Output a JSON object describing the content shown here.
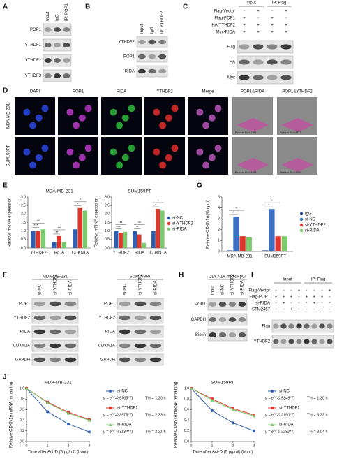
{
  "panels": {
    "A": {
      "label": "A",
      "lanes": [
        "Input",
        "IgG",
        "IP: POP1"
      ],
      "rows": [
        "POP1",
        "YTHDF1",
        "YTHDF2",
        "YTHDF3"
      ]
    },
    "B": {
      "label": "B",
      "lanes": [
        "Input",
        "IgG",
        "IP: YTHDF2"
      ],
      "rows": [
        "YTHDF2",
        "POP1",
        "RIDA"
      ]
    },
    "C": {
      "label": "C",
      "groups": [
        "Input",
        "IP: Flag"
      ],
      "conditions": [
        {
          "name": "Flag-Vector",
          "signs": [
            "-",
            "+",
            "-",
            "+"
          ]
        },
        {
          "name": "Flag-POP1",
          "signs": [
            "+",
            "-",
            "+",
            "-"
          ]
        },
        {
          "name": "HA-YTHDF2",
          "signs": [
            "+",
            "+",
            "+",
            "+"
          ]
        },
        {
          "name": "Myc-RIDA",
          "signs": [
            "+",
            "+",
            "+",
            "+"
          ]
        }
      ],
      "rows": [
        "Flag",
        "HA",
        "Myc"
      ]
    },
    "D": {
      "label": "D",
      "channels": [
        "DAPI",
        "POP1",
        "RIDA",
        "YTHDF2",
        "Merge",
        "POP1&RIDA",
        "POP1&YTHDF2"
      ],
      "channel_colors": [
        "#2a5bd7",
        "#b43cc0",
        "#2e9e3a",
        "#d42a2a",
        "#111111",
        "#111111",
        "#111111"
      ],
      "lines": [
        "MDA-MB-231",
        "SUM159PT"
      ],
      "pearson": [
        [
          "Pearson R²=0.7666",
          "Pearson R²=0.8573"
        ],
        [
          "Pearson R²=0.6683",
          "Pearson R²=0.5035"
        ]
      ]
    },
    "E": {
      "label": "E"
    },
    "F": {
      "label": "F",
      "blots": [
        {
          "title": "MDA-MB-231",
          "lanes": [
            "si-NC",
            "si-YTHDF2",
            "si-RIDA"
          ],
          "rows": [
            "POP1",
            "YTHDF2",
            "RIDA",
            "CDKN1A",
            "GAPDH"
          ]
        },
        {
          "title": "SUM159PT",
          "lanes": [
            "si-NC",
            "si-YTHDF2",
            "si-RIDA"
          ],
          "rows": [
            "POP1",
            "YTHDF2",
            "RIDA",
            "CDKN1A",
            "GAPDH"
          ]
        }
      ]
    },
    "G": {
      "label": "G"
    },
    "H": {
      "label": "H",
      "title": "CDKN1A mRNA pull",
      "lanes": [
        "Input",
        "si-NC",
        "si-YTHDF2",
        "si-RIDA"
      ],
      "rows": [
        "POP1",
        "GAPDH",
        "Biotin"
      ]
    },
    "I": {
      "label": "I",
      "groups": [
        "Input",
        "IP: Flag"
      ],
      "conditions": [
        {
          "name": "Flag-Vector",
          "signs": [
            "-",
            "-",
            "-",
            "+",
            "-",
            "-",
            "-",
            "+"
          ]
        },
        {
          "name": "Flag-POP1",
          "signs": [
            "+",
            "+",
            "+",
            "-",
            "+",
            "+",
            "+",
            "-"
          ]
        },
        {
          "name": "si-RIDA",
          "signs": [
            "-",
            "+",
            "-",
            "-",
            "-",
            "+",
            "-",
            "-"
          ]
        },
        {
          "name": "STM2457",
          "signs": [
            "-",
            "-",
            "+",
            "-",
            "-",
            "-",
            "+",
            "-"
          ]
        }
      ],
      "rows": [
        "Flag",
        "YTHDF2"
      ]
    },
    "J": {
      "label": "J"
    }
  },
  "chart_data": [
    {
      "type": "bar",
      "title": "MDA-MB-231",
      "y_label": "Relative mRNA expression",
      "categories": [
        "YTHDF2",
        "RIDA",
        "CDKN1A"
      ],
      "series": [
        {
          "color": "#2f5fb0",
          "values": [
            1.0,
            0.35,
            1.1
          ]
        },
        {
          "color": "#e0352b",
          "values": [
            1.0,
            0.7,
            2.35
          ]
        },
        {
          "color": "#7cc96e",
          "values": [
            1.1,
            0.35,
            2.2
          ]
        }
      ],
      "ylim": [
        0,
        3
      ],
      "yticks": [
        {
          "value": 0,
          "label": "0.0"
        },
        {
          "value": 0.5,
          "label": "0.5"
        },
        {
          "value": 1,
          "label": "1.0"
        },
        {
          "value": 1.5,
          "label": "1.5"
        },
        {
          "value": 2,
          "label": "2.0"
        },
        {
          "value": 2.5,
          "label": "2.5"
        },
        {
          "value": 3,
          "label": "3.0"
        }
      ],
      "significance": [
        [
          "***",
          "**"
        ],
        [
          "**",
          "**"
        ],
        [
          "*",
          "*"
        ]
      ]
    },
    {
      "type": "bar",
      "title": "SUM159PT",
      "y_label": "Relative mRNA expression",
      "categories": [
        "YTHDF2",
        "RIDA",
        "CDKN1A"
      ],
      "series": [
        {
          "name": "si-NC",
          "color": "#2f5fb0",
          "values": [
            1.0,
            1.0,
            1.0
          ]
        },
        {
          "name": "si-YTHDF2",
          "color": "#e0352b",
          "values": [
            0.9,
            0.8,
            2.3
          ]
        },
        {
          "name": "si-RIDA",
          "color": "#7cc96e",
          "values": [
            0.95,
            0.3,
            2.2
          ]
        }
      ],
      "ylim": [
        0,
        3
      ],
      "yticks": [
        {
          "value": 0,
          "label": "0.0"
        },
        {
          "value": 0.5,
          "label": "0.5"
        },
        {
          "value": 1,
          "label": "1.0"
        },
        {
          "value": 1.5,
          "label": "1.5"
        },
        {
          "value": 2,
          "label": "2.0"
        },
        {
          "value": 2.5,
          "label": "2.5"
        },
        {
          "value": 3,
          "label": "3.0"
        }
      ],
      "significance": [
        [
          "****",
          "**"
        ],
        [
          "**",
          "**"
        ],
        [
          "*",
          "*"
        ]
      ]
    },
    {
      "type": "bar",
      "y_label": "Relative CDKN1A(%Input)",
      "categories": [
        "MDA-MB-231",
        "SUM159PT"
      ],
      "series": [
        {
          "name": "IgG",
          "color": "#1f3f86",
          "values": [
            0.1,
            0.1
          ]
        },
        {
          "name": "si-NC",
          "color": "#3a6fc4",
          "values": [
            3.2,
            3.9
          ]
        },
        {
          "name": "si-YTHDF2",
          "color": "#e0352b",
          "values": [
            1.4,
            1.4
          ]
        },
        {
          "name": "si-RIDA",
          "color": "#7cc96e",
          "values": [
            1.3,
            1.4
          ]
        }
      ],
      "ylim": [
        0,
        5
      ],
      "yticks": [
        0,
        1,
        2,
        3,
        4,
        5
      ],
      "significance": [
        [
          "*",
          "*"
        ],
        [
          "*",
          "*"
        ]
      ]
    },
    {
      "type": "line",
      "title": "MDA-MB-231",
      "x_label": "Time after Act-D (5 μg/ml) (hour)",
      "y_label": "Relative CDKN1A mRNA remaining",
      "x": [
        0,
        1,
        2,
        3
      ],
      "series": [
        {
          "name": "si-NC",
          "color": "#2f5fb0",
          "values": [
            1.0,
            0.56,
            0.33,
            0.18
          ],
          "equation": "y = e^(-0.5765*T)",
          "half_life": "T½ = 1.20 h"
        },
        {
          "name": "si-YTHDF2",
          "color": "#e0352b",
          "values": [
            1.0,
            0.74,
            0.55,
            0.41
          ],
          "equation": "y = e^(-0.2975*T)",
          "half_life": "T½ = 2.33 h"
        },
        {
          "name": "si-RIDA",
          "color": "#7cc96e",
          "values": [
            1.0,
            0.73,
            0.53,
            0.4
          ],
          "equation": "y = e^(-0.3134*T)",
          "half_life": "T½ = 2.21 h"
        }
      ],
      "xlim": [
        0,
        3
      ],
      "xticks": [
        0,
        1,
        2,
        3
      ],
      "ylim": [
        0,
        1
      ],
      "yticks": [
        {
          "value": 0,
          "label": "0.0"
        },
        {
          "value": 0.2,
          "label": "0.2"
        },
        {
          "value": 0.4,
          "label": "0.4"
        },
        {
          "value": 0.6,
          "label": "0.6"
        },
        {
          "value": 0.8,
          "label": "0.8"
        },
        {
          "value": 1,
          "label": "1.0"
        }
      ]
    },
    {
      "type": "line",
      "title": "SUM159PT",
      "x_label": "Time after Act-D (5 μg/ml) (hour)",
      "y_label": "Relative CDKN1A mRNA remaining",
      "x": [
        0,
        1,
        2,
        3
      ],
      "series": [
        {
          "name": "si-NC",
          "color": "#2f5fb0",
          "values": [
            1.0,
            0.58,
            0.35,
            0.2
          ],
          "equation": "y = e^(-0.5349*T)",
          "half_life": "T½ = 1.30 h"
        },
        {
          "name": "si-YTHDF2",
          "color": "#e0352b",
          "values": [
            1.0,
            0.8,
            0.62,
            0.5
          ],
          "equation": "y = e^(-0.2150*T)",
          "half_life": "T½ = 3.22 h"
        },
        {
          "name": "si-RIDA",
          "color": "#7cc96e",
          "values": [
            1.0,
            0.78,
            0.6,
            0.48
          ],
          "equation": "y = e^(-0.2282*T)",
          "half_life": "T½ = 3.04 h"
        }
      ],
      "xlim": [
        0,
        3
      ],
      "xticks": [
        0,
        1,
        2,
        3
      ],
      "ylim": [
        0,
        1
      ],
      "yticks": [
        {
          "value": 0,
          "label": "0.0"
        },
        {
          "value": 0.2,
          "label": "0.2"
        },
        {
          "value": 0.4,
          "label": "0.4"
        },
        {
          "value": 0.6,
          "label": "0.6"
        },
        {
          "value": 0.8,
          "label": "0.8"
        },
        {
          "value": 1,
          "label": "1.0"
        }
      ]
    }
  ]
}
